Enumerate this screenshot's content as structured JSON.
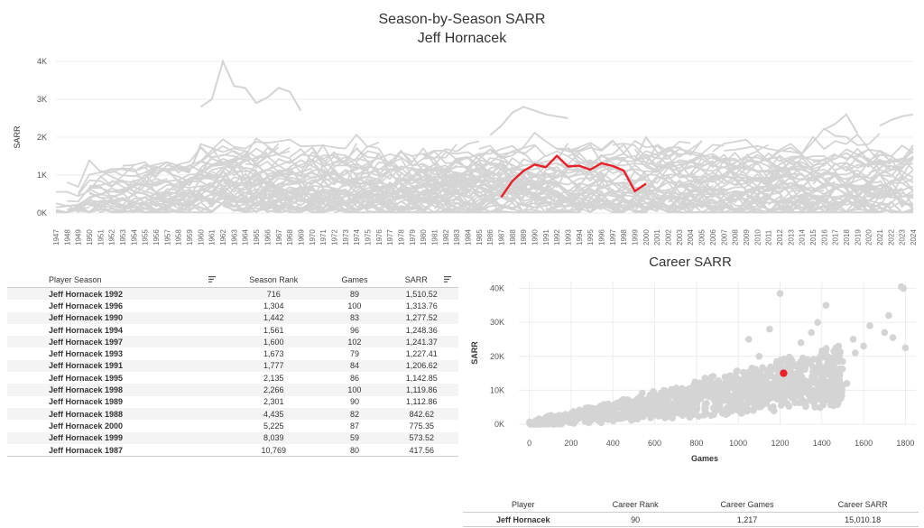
{
  "titles": {
    "main": "Season-by-Season SARR",
    "player": "Jeff Hornacek",
    "career": "Career SARR"
  },
  "colors": {
    "highlight": "#e8202a",
    "background_lines": "#d4d4d4",
    "grid": "#ececec"
  },
  "chart_data": [
    {
      "type": "line",
      "title": "Season-by-Season SARR",
      "ylabel": "SARR",
      "xlabel": "",
      "ylim": [
        0,
        4000
      ],
      "yticks": [
        "0K",
        "1K",
        "2K",
        "3K",
        "4K"
      ],
      "x": [
        1947,
        1948,
        1949,
        1950,
        1951,
        1952,
        1953,
        1954,
        1955,
        1956,
        1957,
        1958,
        1959,
        1960,
        1961,
        1962,
        1963,
        1964,
        1965,
        1966,
        1967,
        1968,
        1969,
        1970,
        1971,
        1972,
        1973,
        1974,
        1975,
        1976,
        1977,
        1978,
        1979,
        1980,
        1981,
        1982,
        1983,
        1984,
        1985,
        1986,
        1987,
        1988,
        1989,
        1990,
        1991,
        1992,
        1993,
        1994,
        1995,
        1996,
        1997,
        1998,
        1999,
        2000,
        2001,
        2002,
        2003,
        2004,
        2005,
        2006,
        2007,
        2008,
        2009,
        2010,
        2011,
        2012,
        2013,
        2014,
        2015,
        2016,
        2017,
        2018,
        2019,
        2020,
        2021,
        2022,
        2023,
        2024
      ],
      "background_series_note_color": "#d4d4d4",
      "series": [
        {
          "name": "Jeff Hornacek",
          "x": [
            1987,
            1988,
            1989,
            1990,
            1991,
            1992,
            1993,
            1994,
            1995,
            1996,
            1997,
            1998,
            1999,
            2000
          ],
          "values": [
            417.56,
            842.62,
            1112.86,
            1277.52,
            1206.62,
            1510.52,
            1227.41,
            1248.36,
            1142.85,
            1313.76,
            1241.37,
            1119.86,
            573.52,
            775.35
          ]
        }
      ],
      "grid": true
    },
    {
      "type": "scatter",
      "title": "Career SARR",
      "xlabel": "Games",
      "ylabel": "SARR",
      "xlim": [
        -50,
        1850
      ],
      "ylim": [
        0,
        42000
      ],
      "xticks": [
        "0",
        "200",
        "400",
        "600",
        "800",
        "1000",
        "1200",
        "1400",
        "1600",
        "1800"
      ],
      "yticks": [
        "0K",
        "10K",
        "20K",
        "30K",
        "40K"
      ],
      "highlight": {
        "name": "Jeff Hornacek",
        "x": 1217,
        "y": 15010.18
      },
      "grid": true
    }
  ],
  "season_table": {
    "headers": [
      "Player Season",
      "Season Rank",
      "Games",
      "SARR"
    ],
    "rows": [
      [
        "Jeff Hornacek 1992",
        "716",
        "89",
        "1,510.52"
      ],
      [
        "Jeff Hornacek 1996",
        "1,304",
        "100",
        "1,313.76"
      ],
      [
        "Jeff Hornacek 1990",
        "1,442",
        "83",
        "1,277.52"
      ],
      [
        "Jeff Hornacek 1994",
        "1,561",
        "96",
        "1,248.36"
      ],
      [
        "Jeff Hornacek 1997",
        "1,600",
        "102",
        "1,241.37"
      ],
      [
        "Jeff Hornacek 1993",
        "1,673",
        "79",
        "1,227.41"
      ],
      [
        "Jeff Hornacek 1991",
        "1,777",
        "84",
        "1,206.62"
      ],
      [
        "Jeff Hornacek 1995",
        "2,135",
        "86",
        "1,142.85"
      ],
      [
        "Jeff Hornacek 1998",
        "2,266",
        "100",
        "1,119.86"
      ],
      [
        "Jeff Hornacek 1989",
        "2,301",
        "90",
        "1,112.86"
      ],
      [
        "Jeff Hornacek 1988",
        "4,435",
        "82",
        "842.62"
      ],
      [
        "Jeff Hornacek 2000",
        "5,225",
        "87",
        "775.35"
      ],
      [
        "Jeff Hornacek 1999",
        "8,039",
        "59",
        "573.52"
      ],
      [
        "Jeff Hornacek 1987",
        "10,769",
        "80",
        "417.56"
      ]
    ]
  },
  "career_table": {
    "headers": [
      "Player",
      "Career Rank",
      "Career Games",
      "Career SARR"
    ],
    "row": [
      "Jeff Hornacek",
      "90",
      "1,217",
      "15,010.18"
    ]
  }
}
